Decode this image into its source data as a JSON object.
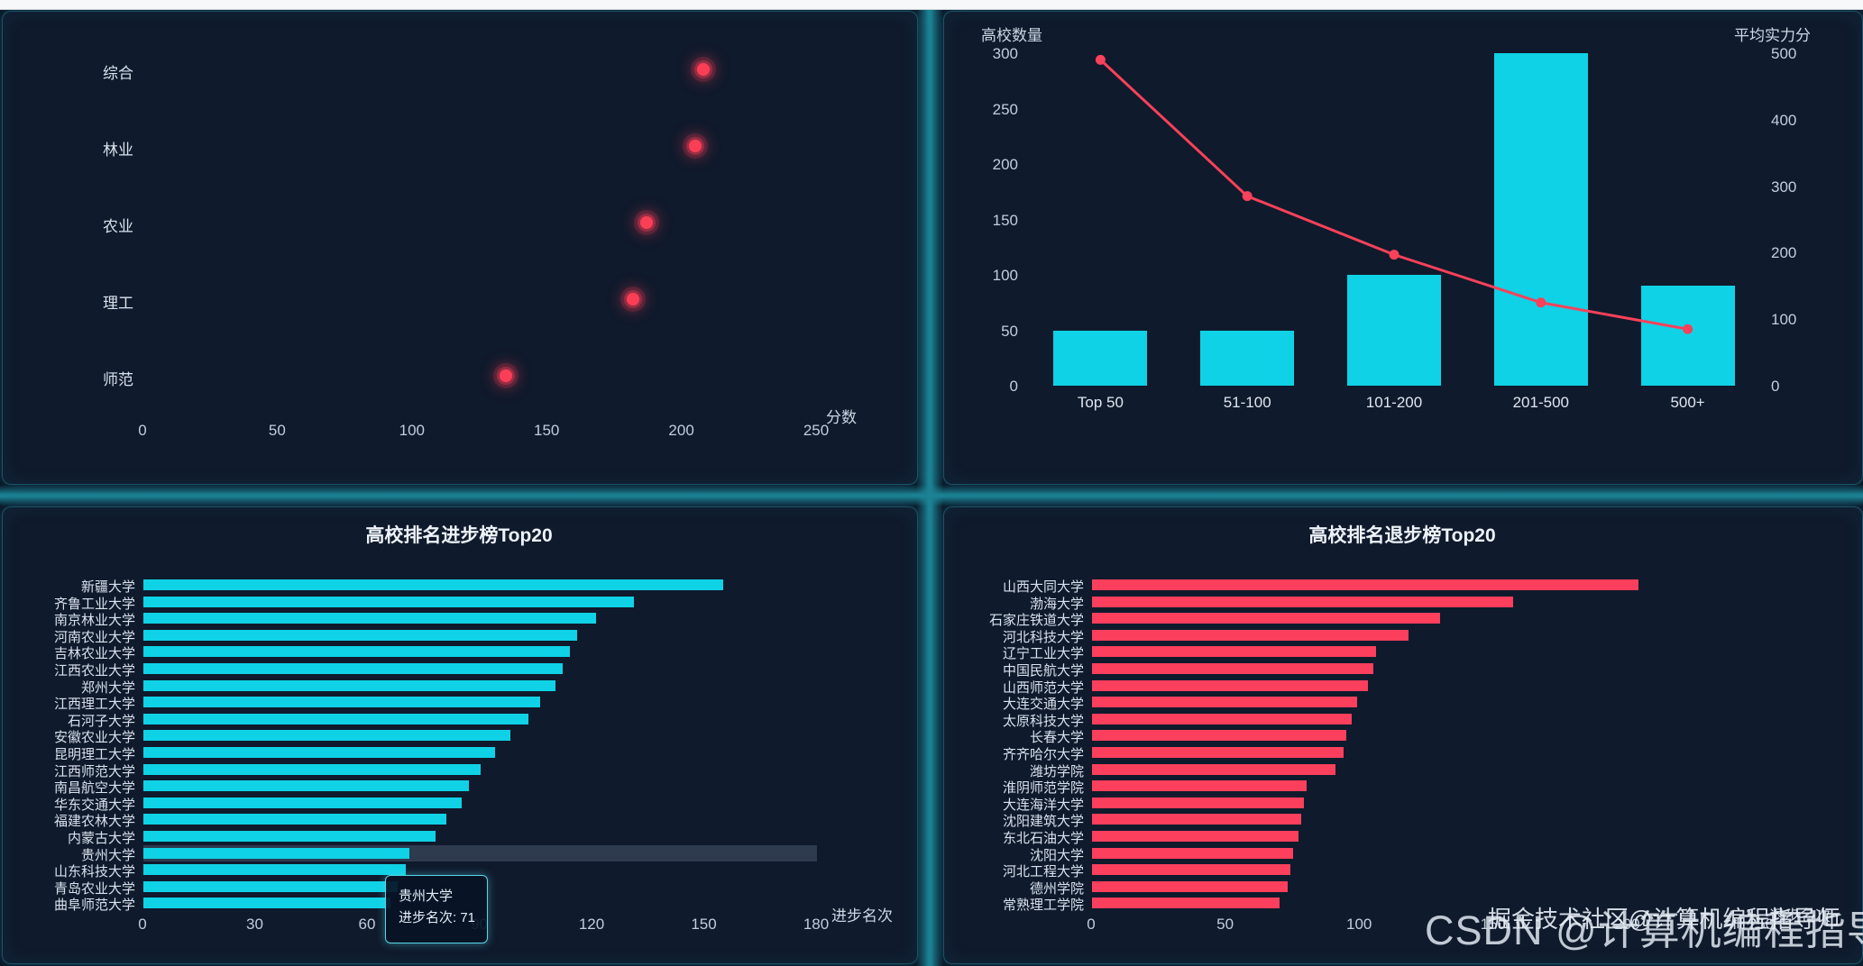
{
  "chart_data": [
    {
      "id": "category-score-scatter",
      "type": "scatter",
      "categories": [
        "综合",
        "林业",
        "农业",
        "理工",
        "师范"
      ],
      "values": [
        208,
        205,
        187,
        182,
        135
      ],
      "xlabel": "分数",
      "x_ticks": [
        0,
        50,
        100,
        150,
        200,
        250
      ],
      "xlim": [
        0,
        250
      ],
      "point_color": "#fb3e55",
      "grid": "dashed-vertical"
    },
    {
      "id": "tier-count-strength-combo",
      "type": "bar",
      "categories": [
        "Top 50",
        "51-100",
        "101-200",
        "201-500",
        "500+"
      ],
      "series": [
        {
          "name": "高校数量",
          "type": "bar",
          "axis": "left",
          "color": "#0fd2e6",
          "values": [
            50,
            50,
            100,
            300,
            90
          ]
        },
        {
          "name": "平均实力分",
          "type": "line",
          "axis": "right",
          "color": "#f8415a",
          "values": [
            490,
            285,
            197,
            125,
            85
          ]
        }
      ],
      "left_axis": {
        "label": "高校数量",
        "ticks": [
          0,
          50,
          100,
          150,
          200,
          250,
          300
        ],
        "max": 300
      },
      "right_axis": {
        "label": "平均实力分",
        "ticks": [
          0,
          100,
          200,
          300,
          400,
          500
        ],
        "max": 500
      },
      "grid": "dashed-horizontal"
    },
    {
      "id": "progress-top20",
      "type": "bar",
      "orientation": "horizontal",
      "title": "高校排名进步榜Top20",
      "xlabel": "进步名次",
      "x_ticks": [
        0,
        30,
        60,
        90,
        120,
        150,
        180
      ],
      "xlim": [
        0,
        180
      ],
      "bar_color": "#0fd2e6",
      "categories": [
        "新疆大学",
        "齐鲁工业大学",
        "南京林业大学",
        "河南农业大学",
        "吉林农业大学",
        "江西农业大学",
        "郑州大学",
        "江西理工大学",
        "石河子大学",
        "安徽农业大学",
        "昆明理工大学",
        "江西师范大学",
        "南昌航空大学",
        "华东交通大学",
        "福建农林大学",
        "内蒙古大学",
        "贵州大学",
        "山东科技大学",
        "青岛农业大学",
        "曲阜师范大学"
      ],
      "values": [
        155,
        131,
        121,
        116,
        114,
        112,
        110,
        106,
        103,
        98,
        94,
        90,
        87,
        85,
        81,
        78,
        71,
        70,
        68,
        66
      ],
      "highlight_index": 16,
      "tooltip": {
        "line1": "贵州大学",
        "line2": "进步名次: 71"
      }
    },
    {
      "id": "decline-top20",
      "type": "bar",
      "orientation": "horizontal",
      "title": "高校排名退步榜Top20",
      "xlabel": "退步名次",
      "x_ticks": [
        0,
        50,
        100,
        150,
        200,
        250
      ],
      "xlim": [
        0,
        250
      ],
      "bar_color": "#fb3f5c",
      "categories": [
        "山西大同大学",
        "渤海大学",
        "石家庄铁道大学",
        "河北科技大学",
        "辽宁工业大学",
        "中国民航大学",
        "山西师范大学",
        "大连交通大学",
        "太原科技大学",
        "长春大学",
        "齐齐哈尔大学",
        "潍坊学院",
        "淮阴师范学院",
        "大连海洋大学",
        "沈阳建筑大学",
        "东北石油大学",
        "沈阳大学",
        "河北工程大学",
        "德州学院",
        "常熟理工学院"
      ],
      "values": [
        204,
        157,
        130,
        118,
        106,
        105,
        103,
        99,
        97,
        95,
        94,
        91,
        80,
        79,
        78,
        77,
        75,
        74,
        73,
        70
      ]
    }
  ],
  "watermarks": {
    "primary": "CSDN @计算机编程指导师",
    "secondary": "掘金技术社区@计算机编程指导师"
  },
  "colors": {
    "background": "#0a1322",
    "panel": "#0f1a2c",
    "divider_teal": "#1b8193",
    "bar_cyan": "#0fd2e6",
    "bar_red": "#fb3f5c",
    "line_red": "#f8415a",
    "scatter_red": "#fb3e55",
    "text": "#d6deea"
  }
}
